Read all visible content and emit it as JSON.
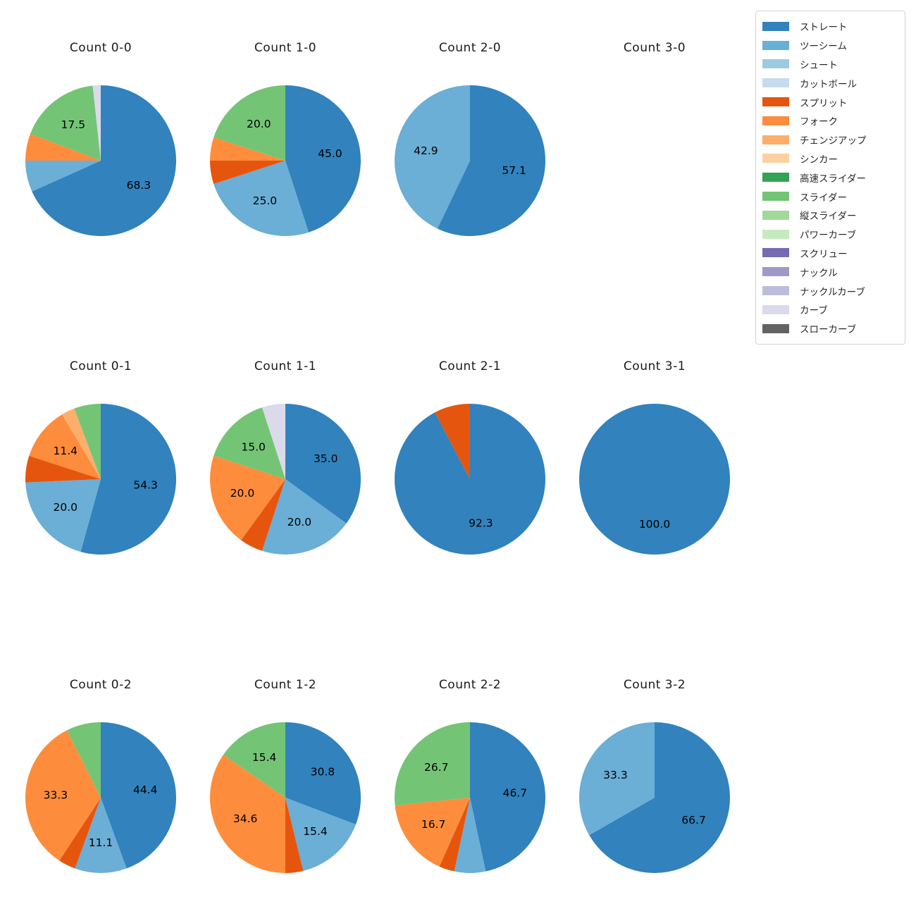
{
  "figure": {
    "background_color": "#ffffff",
    "text_color": "#1a1a1a"
  },
  "legend": {
    "position": "top-right",
    "border_color": "#d4d4d4",
    "items": [
      {
        "label": "ストレート",
        "color": "#3182bd"
      },
      {
        "label": "ツーシーム",
        "color": "#6baed6"
      },
      {
        "label": "シュート",
        "color": "#9ecae1"
      },
      {
        "label": "カットボール",
        "color": "#c6dbef"
      },
      {
        "label": "スプリット",
        "color": "#e6550d"
      },
      {
        "label": "フォーク",
        "color": "#fd8d3c"
      },
      {
        "label": "チェンジアップ",
        "color": "#fdae6b"
      },
      {
        "label": "シンカー",
        "color": "#fdd0a2"
      },
      {
        "label": "高速スライダー",
        "color": "#31a354"
      },
      {
        "label": "スライダー",
        "color": "#74c476"
      },
      {
        "label": "縦スライダー",
        "color": "#a1d99b"
      },
      {
        "label": "パワーカーブ",
        "color": "#c7e9c0"
      },
      {
        "label": "スクリュー",
        "color": "#756bb1"
      },
      {
        "label": "ナックル",
        "color": "#9e9ac8"
      },
      {
        "label": "ナックルカーブ",
        "color": "#bcbddc"
      },
      {
        "label": "カーブ",
        "color": "#dadaeb"
      },
      {
        "label": "スローカーブ",
        "color": "#636363"
      }
    ]
  },
  "chart_data": {
    "type": "pie",
    "layout": {
      "rows": 3,
      "cols": 4,
      "start_angle_deg": 0,
      "direction": "clockwise",
      "radius_px": 107,
      "pct_label_distance": 0.6,
      "label_min_pct": 10,
      "grid": false,
      "legend_position": "top-right"
    },
    "charts": [
      {
        "title": "Count 0-0",
        "slices": [
          {
            "label": "ストレート",
            "pct": 68.3
          },
          {
            "label": "ツーシーム",
            "pct": 6.7
          },
          {
            "label": "フォーク",
            "pct": 5.8
          },
          {
            "label": "スライダー",
            "pct": 17.5
          },
          {
            "label": "カーブ",
            "pct": 1.7
          }
        ]
      },
      {
        "title": "Count 1-0",
        "slices": [
          {
            "label": "ストレート",
            "pct": 45.0
          },
          {
            "label": "ツーシーム",
            "pct": 25.0
          },
          {
            "label": "スプリット",
            "pct": 5.0
          },
          {
            "label": "フォーク",
            "pct": 5.0
          },
          {
            "label": "スライダー",
            "pct": 20.0
          }
        ]
      },
      {
        "title": "Count 2-0",
        "slices": [
          {
            "label": "ストレート",
            "pct": 57.1
          },
          {
            "label": "ツーシーム",
            "pct": 42.9
          }
        ]
      },
      {
        "title": "Count 3-0",
        "slices": []
      },
      {
        "title": "Count 0-1",
        "slices": [
          {
            "label": "ストレート",
            "pct": 54.3
          },
          {
            "label": "ツーシーム",
            "pct": 20.0
          },
          {
            "label": "スプリット",
            "pct": 5.7
          },
          {
            "label": "フォーク",
            "pct": 11.4
          },
          {
            "label": "チェンジアップ",
            "pct": 2.9
          },
          {
            "label": "スライダー",
            "pct": 5.7
          }
        ]
      },
      {
        "title": "Count 1-1",
        "slices": [
          {
            "label": "ストレート",
            "pct": 35.0
          },
          {
            "label": "ツーシーム",
            "pct": 20.0
          },
          {
            "label": "スプリット",
            "pct": 5.0
          },
          {
            "label": "フォーク",
            "pct": 20.0
          },
          {
            "label": "スライダー",
            "pct": 15.0
          },
          {
            "label": "カーブ",
            "pct": 5.0
          }
        ]
      },
      {
        "title": "Count 2-1",
        "slices": [
          {
            "label": "ストレート",
            "pct": 92.3
          },
          {
            "label": "スプリット",
            "pct": 7.7
          }
        ]
      },
      {
        "title": "Count 3-1",
        "slices": [
          {
            "label": "ストレート",
            "pct": 100.0
          }
        ]
      },
      {
        "title": "Count 0-2",
        "slices": [
          {
            "label": "ストレート",
            "pct": 44.4
          },
          {
            "label": "ツーシーム",
            "pct": 11.1
          },
          {
            "label": "スプリット",
            "pct": 3.7
          },
          {
            "label": "フォーク",
            "pct": 33.3
          },
          {
            "label": "スライダー",
            "pct": 7.4
          }
        ]
      },
      {
        "title": "Count 1-2",
        "slices": [
          {
            "label": "ストレート",
            "pct": 30.8
          },
          {
            "label": "ツーシーム",
            "pct": 15.4
          },
          {
            "label": "スプリット",
            "pct": 3.8
          },
          {
            "label": "フォーク",
            "pct": 34.6
          },
          {
            "label": "スライダー",
            "pct": 15.4
          }
        ]
      },
      {
        "title": "Count 2-2",
        "slices": [
          {
            "label": "ストレート",
            "pct": 46.7
          },
          {
            "label": "ツーシーム",
            "pct": 6.7
          },
          {
            "label": "スプリット",
            "pct": 3.3
          },
          {
            "label": "フォーク",
            "pct": 16.7
          },
          {
            "label": "スライダー",
            "pct": 26.7
          }
        ]
      },
      {
        "title": "Count 3-2",
        "slices": [
          {
            "label": "ストレート",
            "pct": 66.7
          },
          {
            "label": "ツーシーム",
            "pct": 33.3
          }
        ]
      }
    ]
  }
}
